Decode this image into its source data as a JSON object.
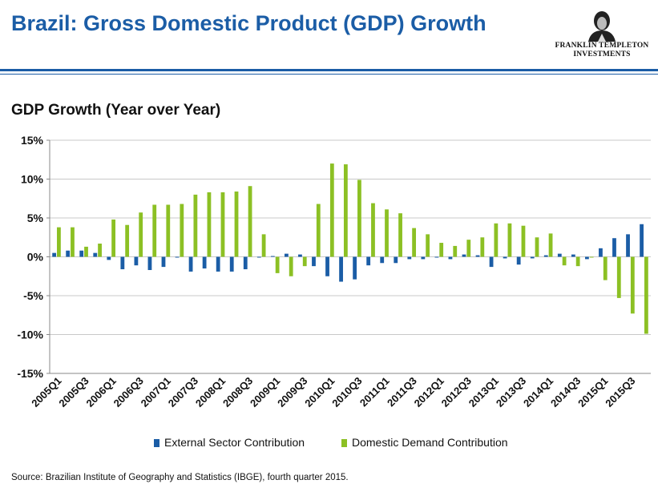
{
  "header": {
    "title": "Brazil: Gross Domestic Product (GDP) Growth",
    "logo_line1": "FRANKLIN TEMPLETON",
    "logo_line2": "INVESTMENTS"
  },
  "chart_data": {
    "type": "bar",
    "title": "GDP Growth (Year over Year)",
    "xlabel": "",
    "ylabel": "",
    "ylim": [
      -15,
      15
    ],
    "yticks": [
      "15%",
      "10%",
      "5%",
      "0%",
      "-5%",
      "-10%",
      "-15%"
    ],
    "ytick_values": [
      15,
      10,
      5,
      0,
      -5,
      -10,
      -15
    ],
    "grid": true,
    "legend_position": "bottom",
    "categories": [
      "2005Q1",
      "2005Q2",
      "2005Q3",
      "2005Q4",
      "2006Q1",
      "2006Q2",
      "2006Q3",
      "2006Q4",
      "2007Q1",
      "2007Q2",
      "2007Q3",
      "2007Q4",
      "2008Q1",
      "2008Q2",
      "2008Q3",
      "2008Q4",
      "2009Q1",
      "2009Q2",
      "2009Q3",
      "2009Q4",
      "2010Q1",
      "2010Q2",
      "2010Q3",
      "2010Q4",
      "2011Q1",
      "2011Q2",
      "2011Q3",
      "2011Q4",
      "2012Q1",
      "2012Q2",
      "2012Q3",
      "2012Q4",
      "2013Q1",
      "2013Q2",
      "2013Q3",
      "2013Q4",
      "2014Q1",
      "2014Q2",
      "2014Q3",
      "2014Q4",
      "2015Q1",
      "2015Q2",
      "2015Q3",
      "2015Q4"
    ],
    "shown_tick_labels": [
      "2005Q1",
      "2005Q3",
      "2006Q1",
      "2006Q3",
      "2007Q1",
      "2007Q3",
      "2008Q1",
      "2008Q3",
      "2009Q1",
      "2009Q3",
      "2010Q1",
      "2010Q3",
      "2011Q1",
      "2011Q3",
      "2012Q1",
      "2012Q3",
      "2013Q1",
      "2013Q3",
      "2014Q1",
      "2014Q3",
      "2015Q1",
      "2015Q3"
    ],
    "series": [
      {
        "name": "External Sector Contribution",
        "color": "#1b5da6",
        "values": [
          0.5,
          0.8,
          0.8,
          0.5,
          -0.4,
          -1.6,
          -1.1,
          -1.7,
          -1.3,
          -0.1,
          -1.9,
          -1.5,
          -1.9,
          -1.9,
          -1.6,
          -0.1,
          0.1,
          0.4,
          0.3,
          -1.2,
          -2.5,
          -3.2,
          -2.9,
          -1.1,
          -0.8,
          -0.8,
          -0.3,
          -0.3,
          -0.1,
          -0.3,
          0.3,
          0.2,
          -1.3,
          -0.2,
          -1.0,
          -0.2,
          0.2,
          0.4,
          0.3,
          -0.3,
          1.1,
          2.4,
          2.9,
          4.2
        ]
      },
      {
        "name": "Domestic Demand Contribution",
        "color": "#8cc024",
        "values": [
          3.8,
          3.8,
          1.3,
          1.7,
          4.8,
          4.1,
          5.7,
          6.7,
          6.7,
          6.8,
          8.0,
          8.3,
          8.3,
          8.4,
          9.1,
          2.9,
          -2.1,
          -2.5,
          -1.2,
          6.8,
          12.0,
          11.9,
          9.9,
          6.9,
          6.1,
          5.6,
          3.7,
          2.9,
          1.8,
          1.4,
          2.2,
          2.5,
          4.3,
          4.3,
          4.0,
          2.5,
          3.0,
          -1.1,
          -1.2,
          -0.1,
          -3.0,
          -5.3,
          -7.3,
          -9.9
        ]
      }
    ]
  },
  "source": "Source: Brazilian Institute  of Geography and Statistics (IBGE), fourth quarter 2015."
}
